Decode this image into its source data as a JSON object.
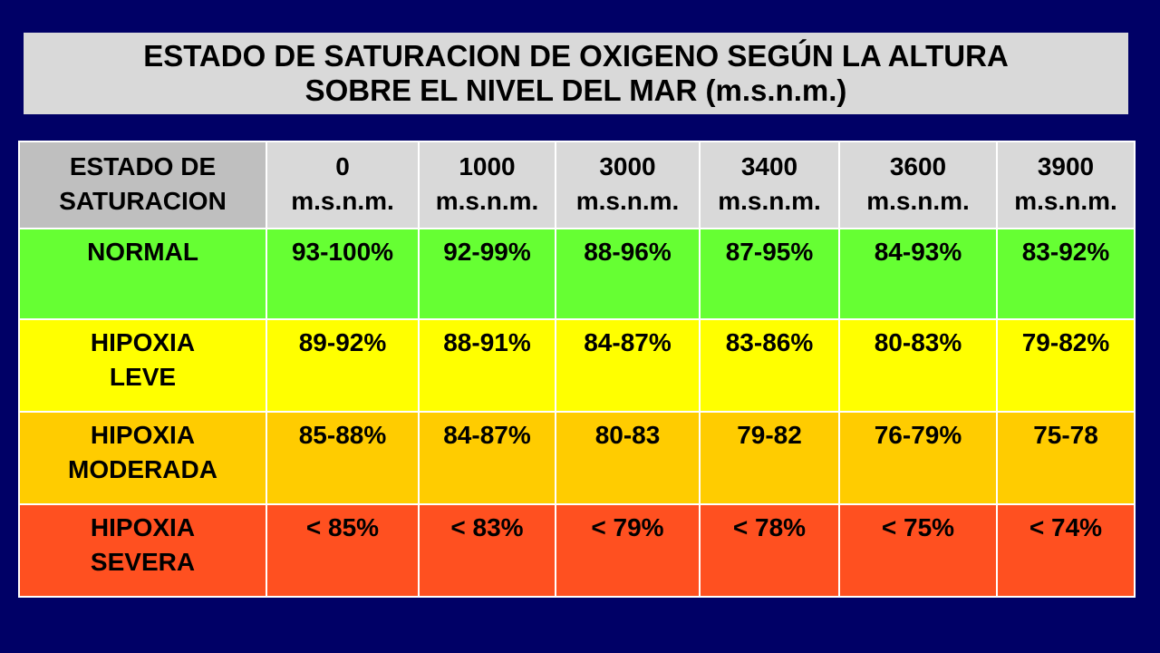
{
  "title": {
    "line1": "ESTADO DE SATURACION DE OXIGENO SEGÚN LA ALTURA",
    "line2": "SOBRE EL NIVEL DEL MAR (m.s.n.m.)"
  },
  "table": {
    "corner_header": [
      "ESTADO DE",
      "SATURACION"
    ],
    "columns": [
      {
        "altitude": "0",
        "unit": "m.s.n.m."
      },
      {
        "altitude": "1000",
        "unit": "m.s.n.m."
      },
      {
        "altitude": "3000",
        "unit": "m.s.n.m."
      },
      {
        "altitude": "3400",
        "unit": "m.s.n.m."
      },
      {
        "altitude": "3600",
        "unit": "m.s.n.m."
      },
      {
        "altitude": "3900",
        "unit": "m.s.n.m."
      }
    ],
    "rows": [
      {
        "label": [
          "NORMAL"
        ],
        "color": "#66ff33",
        "values": [
          "93-100%",
          "92-99%",
          "88-96%",
          "87-95%",
          "84-93%",
          "83-92%"
        ]
      },
      {
        "label": [
          "HIPOXIA",
          "LEVE"
        ],
        "color": "#ffff00",
        "values": [
          "89-92%",
          "88-91%",
          "84-87%",
          "83-86%",
          "80-83%",
          "79-82%"
        ]
      },
      {
        "label": [
          "HIPOXIA",
          "MODERADA"
        ],
        "color": "#ffcc00",
        "values": [
          "85-88%",
          "84-87%",
          "80-83",
          "79-82",
          "76-79%",
          "75-78"
        ]
      },
      {
        "label": [
          "HIPOXIA",
          "SEVERA"
        ],
        "color": "#ff5020",
        "values": [
          "< 85%",
          "< 83%",
          "< 79%",
          "< 78%",
          "< 75%",
          "< 74%"
        ]
      }
    ]
  },
  "colors": {
    "background": "#000066",
    "title_box": "#d9d9d9",
    "header_cell": "#d9d9d9",
    "corner_cell": "#bfbfbf"
  }
}
